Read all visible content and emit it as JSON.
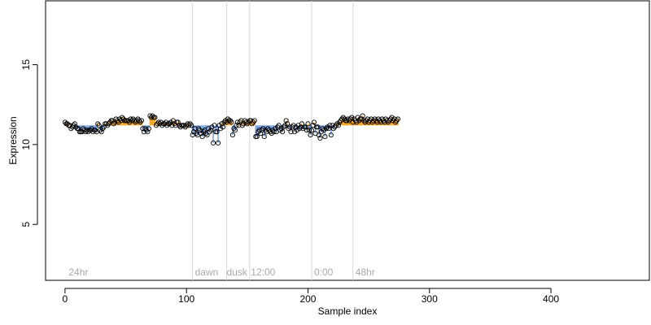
{
  "chart_data": {
    "type": "scatter",
    "xlabel": "Sample index",
    "ylabel": "Expression",
    "xlim": [
      -16,
      481
    ],
    "ylim": [
      1.5,
      19
    ],
    "xticks": [
      0,
      100,
      200,
      300,
      400
    ],
    "yticks": [
      5,
      10,
      15
    ],
    "xtick_labels": [
      "0",
      "100",
      "200",
      "300",
      "400"
    ],
    "ytick_labels": [
      "5",
      "10",
      "15"
    ],
    "baseline": 11.2,
    "colors": {
      "above_baseline": "#f5a623",
      "below_baseline": "#7ea6e0",
      "point_edge": "#000000",
      "divider": "#d9d9d9",
      "annotation": "#a9a9a9"
    },
    "segment_dividers": [
      105,
      133,
      152,
      203,
      237
    ],
    "annotations": [
      {
        "x": 3,
        "text": "24hr"
      },
      {
        "x": 107,
        "text": "dawn"
      },
      {
        "x": 133,
        "text": "dusk"
      },
      {
        "x": 153,
        "text": "12:00"
      },
      {
        "x": 205,
        "text": "0:00"
      },
      {
        "x": 239,
        "text": "48hr"
      }
    ],
    "annotation_y": 2.0,
    "y": [
      11.4,
      11.3,
      11.3,
      11.2,
      11.2,
      11.0,
      11.1,
      11.2,
      11.3,
      11.1,
      11.0,
      11.0,
      10.8,
      10.8,
      10.8,
      11.0,
      10.9,
      10.8,
      10.9,
      10.8,
      10.9,
      10.9,
      11.0,
      10.8,
      10.9,
      10.9,
      10.8,
      11.3,
      11.2,
      10.9,
      10.8,
      11.0,
      11.1,
      11.3,
      11.3,
      11.2,
      11.3,
      11.4,
      11.5,
      11.5,
      11.3,
      11.4,
      11.6,
      11.5,
      11.4,
      11.6,
      11.5,
      11.7,
      11.6,
      11.5,
      11.5,
      11.5,
      11.5,
      11.4,
      11.6,
      11.5,
      11.6,
      11.5,
      11.4,
      11.5,
      11.6,
      11.5,
      11.4,
      11.5,
      11.0,
      10.8,
      11.0,
      10.9,
      10.8,
      11.0,
      11.8,
      11.7,
      11.8,
      11.7,
      11.7,
      11.2,
      11.3,
      11.4,
      11.3,
      11.4,
      11.2,
      11.3,
      11.3,
      11.4,
      11.2,
      11.3,
      11.3,
      11.4,
      11.2,
      11.5,
      11.3,
      11.2,
      11.4,
      11.4,
      11.2,
      11.1,
      11.2,
      11.2,
      11.2,
      11.1,
      11.2,
      11.3,
      11.2,
      11.3,
      11.2,
      10.6,
      10.8,
      11.0,
      10.7,
      10.6,
      11.0,
      10.9,
      10.7,
      10.5,
      10.8,
      10.9,
      10.7,
      10.6,
      11.0,
      10.8,
      10.9,
      11.1,
      10.1,
      11.2,
      10.8,
      10.8,
      10.1,
      11.2,
      11.0,
      11.3,
      11.1,
      11.4,
      11.5,
      11.4,
      11.6,
      11.5,
      11.5,
      11.4,
      10.6,
      11.0,
      10.9,
      11.2,
      11.4,
      11.2,
      11.4,
      11.5,
      11.2,
      11.3,
      11.5,
      11.4,
      11.3,
      11.4,
      11.5,
      11.5,
      11.3,
      11.4,
      11.5,
      10.5,
      10.5,
      10.8,
      10.9,
      10.7,
      10.9,
      11.0,
      10.5,
      10.9,
      10.8,
      11.0,
      10.9,
      10.8,
      10.7,
      10.9,
      10.8,
      11.0,
      10.8,
      11.1,
      11.2,
      10.9,
      11.0,
      10.8,
      11.1,
      11.2,
      11.5,
      11.3,
      11.0,
      11.1,
      10.8,
      11.1,
      11.2,
      10.8,
      11.1,
      10.9,
      11.2,
      11.0,
      11.1,
      11.3,
      11.0,
      11.1,
      11.1,
      10.9,
      11.3,
      10.9,
      10.6,
      10.9,
      11.2,
      11.4,
      10.7,
      11.1,
      11.1,
      10.6,
      10.4,
      10.8,
      11.0,
      10.9,
      10.5,
      11.0,
      11.1,
      11.0,
      11.2,
      10.6,
      11.2,
      11.0,
      11.1,
      11.2,
      11.3,
      11.2,
      11.4,
      11.5,
      11.6,
      11.7,
      11.6,
      11.5,
      11.5,
      11.6,
      11.5,
      11.6,
      11.7,
      11.4,
      11.6,
      11.5,
      11.4,
      11.7,
      11.5,
      11.6,
      11.6,
      11.8,
      11.5,
      11.4,
      11.5,
      11.6,
      11.4,
      11.5,
      11.6,
      11.4,
      11.5,
      11.6,
      11.5,
      11.4,
      11.6,
      11.5,
      11.4,
      11.6,
      11.5,
      11.4,
      11.6,
      11.5,
      11.4,
      11.5,
      11.6,
      11.7,
      11.5,
      11.6,
      11.4,
      11.5,
      11.6
    ]
  }
}
